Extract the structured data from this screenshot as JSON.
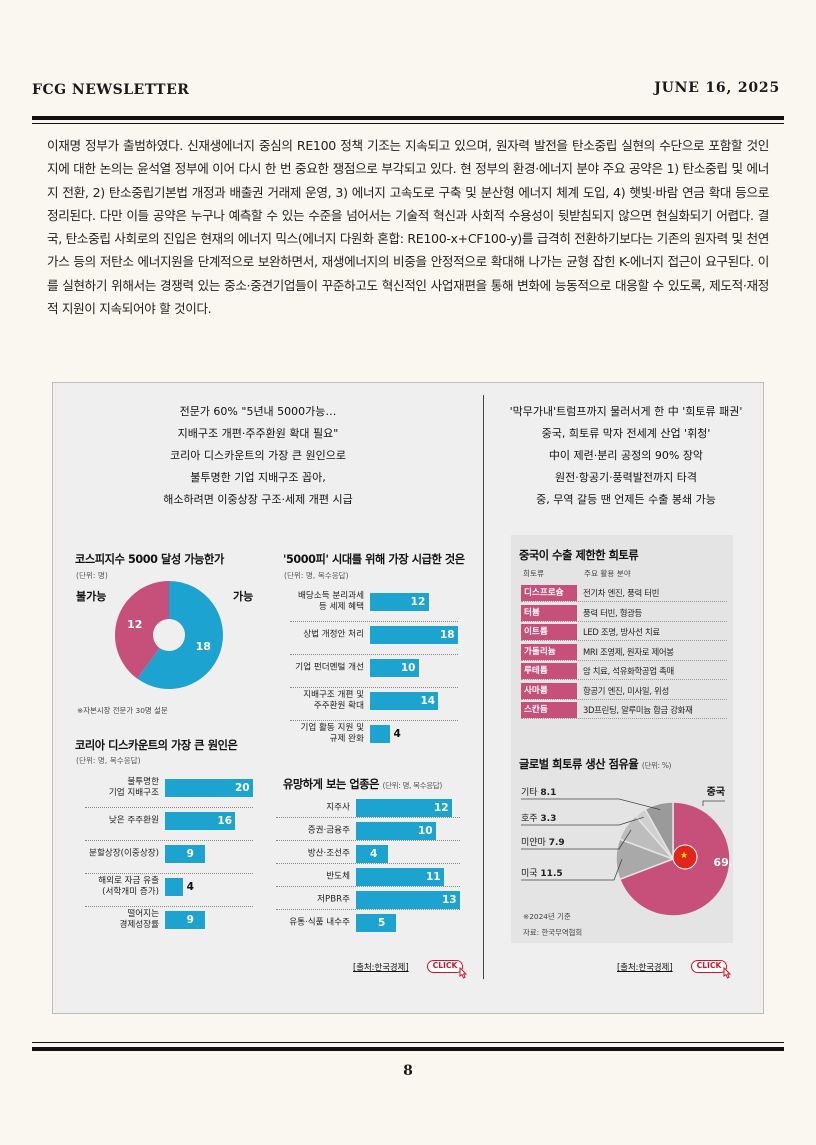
{
  "header": {
    "left": "FCG NEWSLETTER",
    "right": "JUNE 16, 2025"
  },
  "body_text": "이재명 정부가 출범하였다. 신재생에너지 중심의 RE100 정책 기조는 지속되고 있으며, 원자력 발전을 탄소중립 실현의 수단으로 포함할 것인지에 대한 논의는 윤석열 정부에 이어 다시 한 번 중요한 쟁점으로 부각되고 있다. 현 정부의 환경·에너지 분야 주요 공약은 1) 탄소중립 및 에너지 전환, 2) 탄소중립기본법 개정과 배출권 거래제 운영, 3) 에너지 고속도로 구축 및 분산형 에너지 체계 도입, 4) 햇빛·바람 연금 확대 등으로 정리된다. 다만 이들 공약은 누구나 예측할 수 있는 수준을 넘어서는 기술적 혁신과 사회적 수용성이 뒷받침되지 않으면 현실화되기 어렵다. 결국, 탄소중립 사회로의 진입은 현재의 에너지 믹스(에너지 다원화 혼합: RE100-x+CF100-y)를 급격히 전환하기보다는 기존의 원자력 및 천연가스 등의 저탄소 에너지원을 단계적으로 보완하면서, 재생에너지의 비중을 안정적으로 확대해 나가는 균형 잡힌 K-에너지 접근이 요구된다. 이를 실현하기 위해서는 경쟁력 있는 중소·중견기업들이 꾸준하고도 혁신적인 사업재편을 통해 변화에 능동적으로 대응할 수 있도록, 제도적·재정적 지원이 지속되어야 할 것이다.",
  "left_headline": [
    "전문가 60% \"5년내 5000가능…",
    "지배구조 개편·주주환원 확대 필요\"",
    "코리아 디스카운트의 가장 큰 원인으로",
    "불투명한 기업 지배구조 꼽아,",
    "해소하려면 이중상장 구조·세제 개편 시급"
  ],
  "right_headline": [
    "'막무가내'트럼프까지 물러서게 한 中 '희토류 패권'",
    "중국, 희토류 막자 전세계 산업 '휘청'",
    "中이 제련·분리 공정의 90% 장악",
    "원전·항공기·풍력발전까지 타격",
    "중, 무역 갈등 땐 언제든 수출 봉쇄 가능"
  ],
  "chart_data": [
    {
      "type": "pie",
      "title": "코스피지수 5000 달성 가능한가",
      "unit": "(단위: 명)",
      "categories": [
        "불가능",
        "가능"
      ],
      "values": [
        12,
        18
      ],
      "colors": [
        "#c7507b",
        "#1ca3cf"
      ],
      "note": "※자본시장 전문가 30명 설문"
    },
    {
      "type": "bar",
      "title": "'5000피' 시대를 위해 가장 시급한 것은",
      "unit": "(단위: 명, 복수응답)",
      "categories": [
        [
          "배당소득 분리과세",
          "등 세제 혜택"
        ],
        [
          "상법 개정안 처리"
        ],
        [
          "기업 펀더멘털 개선"
        ],
        [
          "지배구조 개편 및",
          "주주환원 확대"
        ],
        [
          "기업 활동 지원 및",
          "규제 완화"
        ]
      ],
      "values": [
        12,
        18,
        10,
        14,
        4
      ],
      "xlim": [
        0,
        18
      ]
    },
    {
      "type": "bar",
      "title": "코리아 디스카운트의 가장 큰 원인은",
      "unit": "(단위: 명, 복수응답)",
      "categories": [
        [
          "불투명한",
          "기업 지배구조"
        ],
        [
          "낮은 주주환원"
        ],
        [
          "분할상장(이중상장)"
        ],
        [
          "해외로 자금 유출",
          "(서학개미 증가)"
        ],
        [
          "떨어지는",
          "경제성장률"
        ]
      ],
      "values": [
        20,
        16,
        9,
        4,
        9
      ],
      "xlim": [
        0,
        20
      ]
    },
    {
      "type": "bar",
      "title": "유망하게 보는 업종은",
      "unit": "(단위: 명, 복수응답)",
      "categories": [
        [
          "지주사"
        ],
        [
          "증권·금융주"
        ],
        [
          "방산·조선주"
        ],
        [
          "반도체"
        ],
        [
          "저PBR주"
        ],
        [
          "유통·식품 내수주"
        ]
      ],
      "values": [
        12,
        10,
        4,
        11,
        13,
        5
      ],
      "xlim": [
        0,
        13
      ]
    },
    {
      "type": "table",
      "title": "중국이 수출 제한한 희토류",
      "columns": [
        "희토류",
        "주요 활용 분야"
      ],
      "rows": [
        [
          "디스프로슘",
          "전기차 엔진, 풍력 터빈"
        ],
        [
          "터븀",
          "풍력 터빈, 형광등"
        ],
        [
          "이트륨",
          "LED 조명, 방사선 치료"
        ],
        [
          "가돌리늄",
          "MRI 조영제, 원자로 제어봉"
        ],
        [
          "루테튬",
          "암 치료, 석유화학공업 촉매"
        ],
        [
          "사마륨",
          "항공기 엔진, 미사일, 위성"
        ],
        [
          "스칸듐",
          "3D프린팅, 알루미늄 합금 강화재"
        ]
      ]
    },
    {
      "type": "pie",
      "title": "글로벌 희토류 생산 점유율",
      "unit": "(단위: %)",
      "categories": [
        "중국",
        "미국",
        "미얀마",
        "호주",
        "기타"
      ],
      "values": [
        69.2,
        11.5,
        7.9,
        3.3,
        8.1
      ],
      "colors": [
        "#c7507b",
        "#a9a9a9",
        "#bdbdbd",
        "#d0d0d0",
        "#9a9a9a"
      ],
      "note": "※2024년 기준",
      "source": "자료: 한국무역협회"
    }
  ],
  "sources": {
    "left": "[출처:한국경제]",
    "right": "[출처:한국경제]",
    "click": "CLICK"
  },
  "page_number": "8",
  "colors": {
    "accent_pink": "#c7507b",
    "accent_blue": "#1ca3cf",
    "click_red": "#d3122b"
  }
}
